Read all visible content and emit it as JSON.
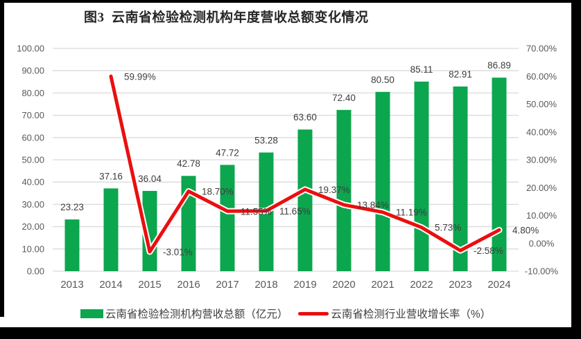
{
  "title": "图3  云南省检验检测机构年度营收总额变化情况",
  "chart_data": {
    "type": "combo-bar-line",
    "categories": [
      "2013",
      "2014",
      "2015",
      "2016",
      "2017",
      "2018",
      "2019",
      "2020",
      "2021",
      "2022",
      "2023",
      "2024"
    ],
    "series": [
      {
        "name": "云南省检验检测机构营收总额（亿元）",
        "type": "bar",
        "axis": "left",
        "color": "#0ca64f",
        "values": [
          23.23,
          37.16,
          36.04,
          42.78,
          47.72,
          53.28,
          63.6,
          72.4,
          80.5,
          85.11,
          82.91,
          86.89
        ],
        "labels": [
          "23.23",
          "37.16",
          "36.04",
          "42.78",
          "47.72",
          "53.28",
          "63.60",
          "72.40",
          "80.50",
          "85.11",
          "82.91",
          "86.89"
        ]
      },
      {
        "name": "云南省检测行业营收增长率（%）",
        "type": "line",
        "axis": "right",
        "color": "#ea0f0f",
        "values": [
          null,
          59.99,
          -3.01,
          18.7,
          11.55,
          11.65,
          19.37,
          13.84,
          11.19,
          5.73,
          -2.58,
          4.8
        ],
        "labels": [
          null,
          "59.99%",
          "-3.01%",
          "18.70%",
          "11.55%",
          "11.65%",
          "19.37%",
          "13.84%",
          "11.19%",
          "5.73%",
          "-2.58%",
          "4.80%"
        ]
      }
    ],
    "left_axis": {
      "min": 0,
      "max": 100,
      "step": 10,
      "tick_labels": [
        "0.00",
        "10.00",
        "20.00",
        "30.00",
        "40.00",
        "50.00",
        "60.00",
        "70.00",
        "80.00",
        "90.00",
        "100.00"
      ]
    },
    "right_axis": {
      "min": -10,
      "max": 70,
      "step": 10,
      "tick_labels": [
        "-10.00%",
        "0.00%",
        "10.00%",
        "20.00%",
        "30.00%",
        "40.00%",
        "50.00%",
        "60.00%",
        "70.00%"
      ]
    },
    "grid": true,
    "legend_position": "bottom",
    "colors": {
      "grid": "#d9d9d9",
      "axis_text": "#595959",
      "data_label": "#3d3d3d",
      "line_casing": "#ffffff",
      "background": "#ffffff",
      "frame": "#000000"
    }
  }
}
